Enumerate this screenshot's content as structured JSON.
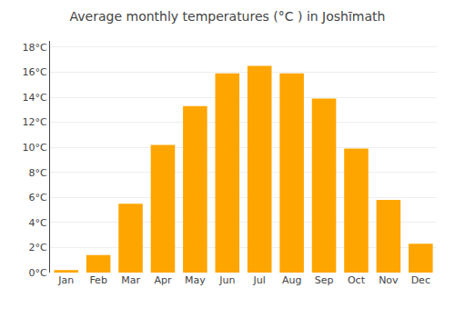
{
  "chart_data": {
    "type": "bar",
    "title": "Average monthly temperatures (°C ) in Joshīmath",
    "categories": [
      "Jan",
      "Feb",
      "Mar",
      "Apr",
      "May",
      "Jun",
      "Jul",
      "Aug",
      "Sep",
      "Oct",
      "Nov",
      "Dec"
    ],
    "values": [
      0.2,
      1.4,
      5.5,
      10.2,
      13.3,
      15.9,
      16.5,
      15.9,
      13.9,
      9.9,
      5.8,
      2.3
    ],
    "color": "#FFA500",
    "ylim": [
      0,
      18.5
    ],
    "yticks": [
      {
        "value": 0,
        "label": "0°C"
      },
      {
        "value": 2,
        "label": "2°C"
      },
      {
        "value": 4,
        "label": "4°C"
      },
      {
        "value": 6,
        "label": "6°C"
      },
      {
        "value": 8,
        "label": "8°C"
      },
      {
        "value": 10,
        "label": "10°C"
      },
      {
        "value": 12,
        "label": "12°C"
      },
      {
        "value": 14,
        "label": "14°C"
      },
      {
        "value": 16,
        "label": "16°C"
      },
      {
        "value": 18,
        "label": "18°C"
      }
    ],
    "grid": true
  }
}
